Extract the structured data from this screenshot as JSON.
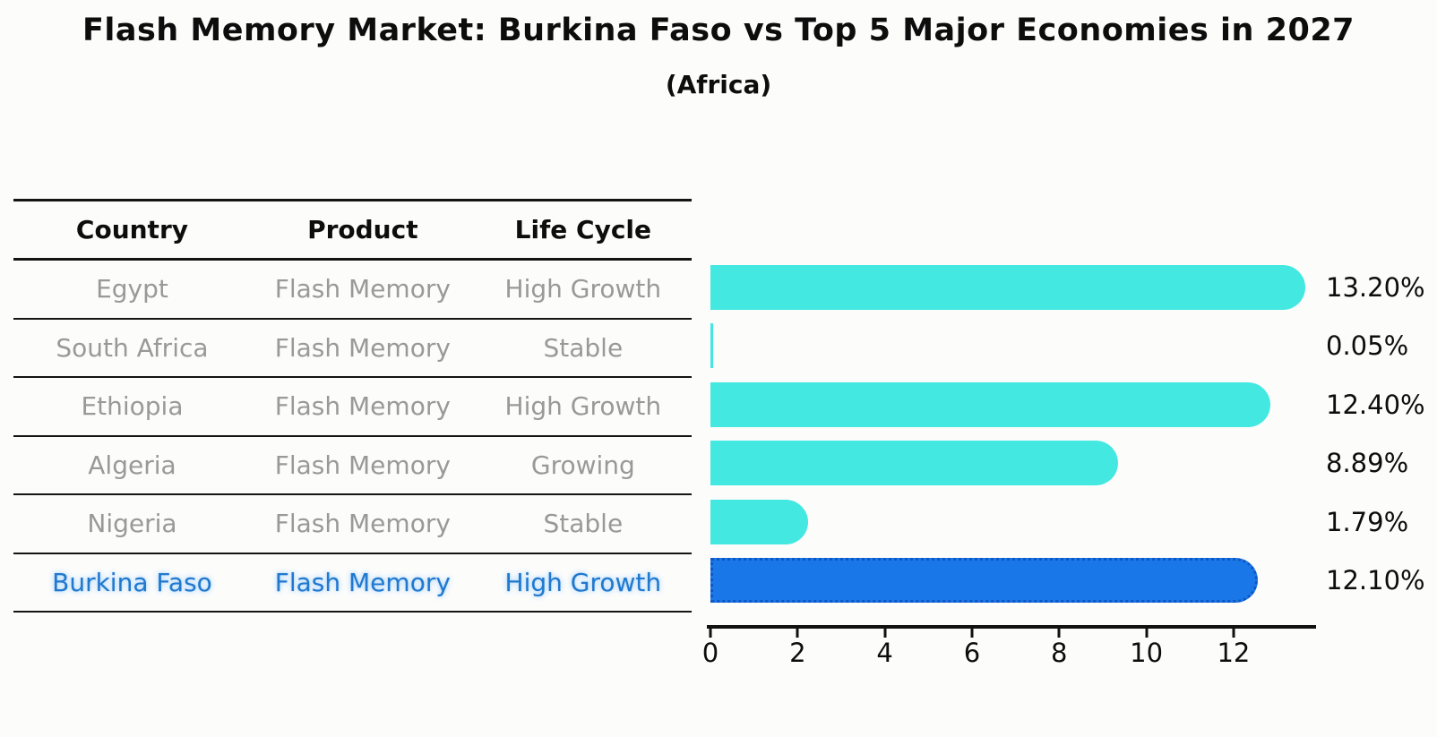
{
  "header": {
    "title": "Flash Memory Market: Burkina Faso vs Top 5 Major Economies in 2027",
    "subtitle": "(Africa)"
  },
  "table": {
    "headers": [
      "Country",
      "Product",
      "Life Cycle"
    ],
    "rows": [
      {
        "country": "Egypt",
        "product": "Flash Memory",
        "life_cycle": "High Growth",
        "highlight": false
      },
      {
        "country": "South Africa",
        "product": "Flash Memory",
        "life_cycle": "Stable",
        "highlight": false
      },
      {
        "country": "Ethiopia",
        "product": "Flash Memory",
        "life_cycle": "High Growth",
        "highlight": false
      },
      {
        "country": "Algeria",
        "product": "Flash Memory",
        "life_cycle": "Growing",
        "highlight": false
      },
      {
        "country": "Nigeria",
        "product": "Flash Memory",
        "life_cycle": "Stable",
        "highlight": false
      },
      {
        "country": "Burkina Faso",
        "product": "Flash Memory",
        "life_cycle": "High Growth",
        "highlight": true
      }
    ]
  },
  "chart_data": {
    "type": "bar",
    "orientation": "horizontal",
    "title": "Flash Memory Market: Burkina Faso vs Top 5 Major Economies in 2027",
    "subtitle": "(Africa)",
    "categories": [
      "Egypt",
      "South Africa",
      "Ethiopia",
      "Algeria",
      "Nigeria",
      "Burkina Faso"
    ],
    "values": [
      13.2,
      0.05,
      12.4,
      8.89,
      1.79,
      12.1
    ],
    "value_labels": [
      "13.20%",
      "0.05%",
      "12.40%",
      "8.89%",
      "1.79%",
      "12.10%"
    ],
    "x_ticks": [
      0,
      2,
      4,
      6,
      8,
      10,
      12
    ],
    "xlim": [
      0,
      13.9
    ],
    "grid": false,
    "legend_position": "none",
    "highlight_index": 5,
    "colors": {
      "bar": "#43E8E1",
      "highlight_bar": "#1977E8",
      "highlight_border": "#0E57C4",
      "table_text_gray": "#999999",
      "highlight_text": "#2278CD",
      "axis": "#111111"
    }
  }
}
